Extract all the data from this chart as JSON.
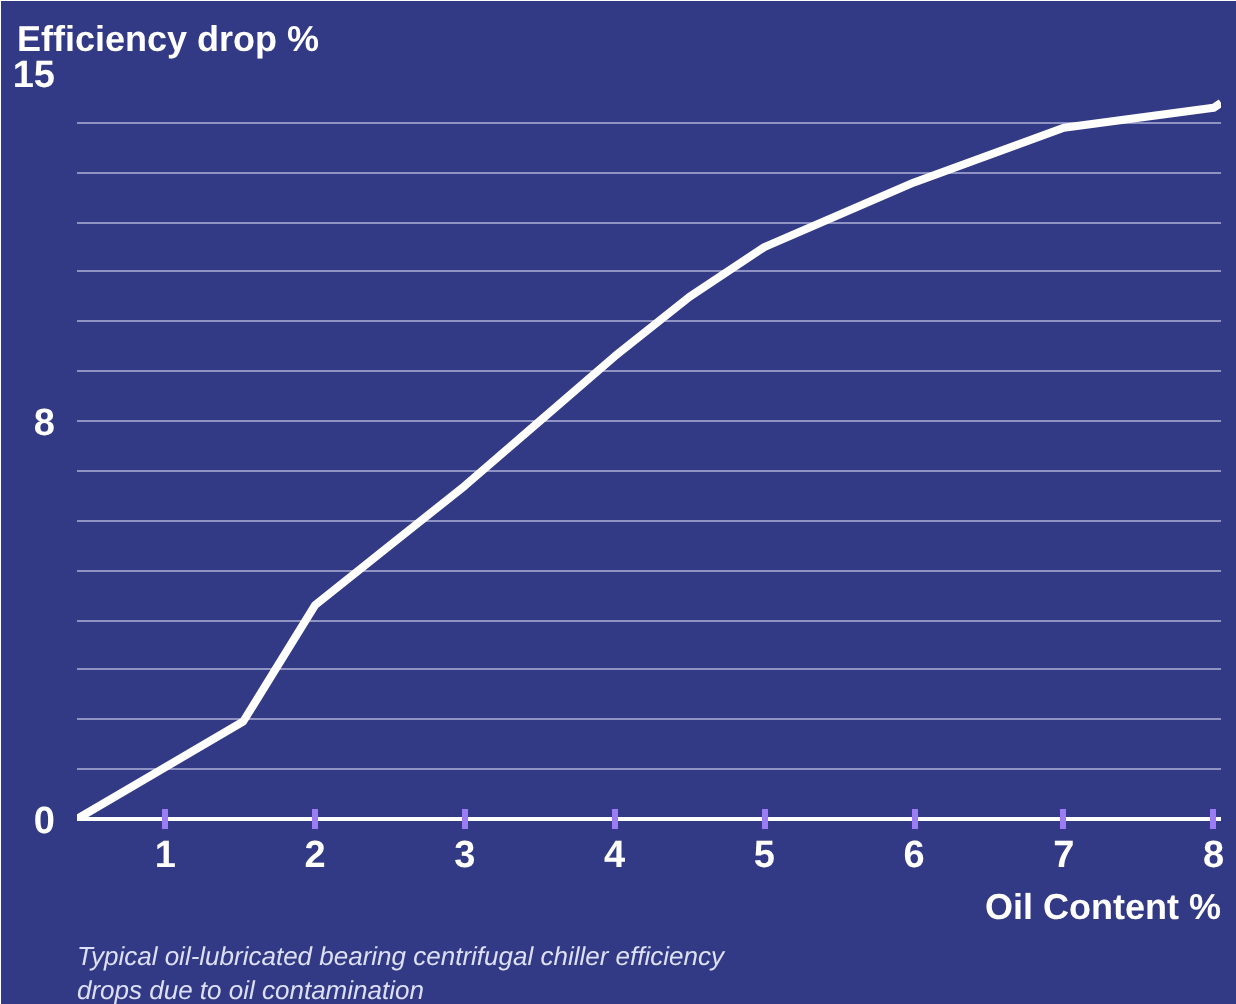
{
  "chart_data": {
    "type": "line",
    "xlabel": "Oil Content %",
    "ylabel": "Efficiency drop %",
    "annotations": [
      "Typical oil-lubricated bearing centrifugal chiller efficiency drops due to oil contamination"
    ],
    "x": [
      0.41,
      1.52,
      2,
      2.5,
      3,
      3.5,
      4,
      4.5,
      5,
      6,
      7,
      8,
      8.05
    ],
    "series": [
      {
        "color": "#ffffff",
        "values": [
          0,
          1.96,
          4.3,
          5.5,
          6.7,
          8.0,
          9.3,
          10.5,
          11.5,
          12.8,
          13.9,
          14.3,
          14.4
        ]
      }
    ],
    "xlim": [
      0.41,
      8.05
    ],
    "ylim": [
      0,
      15
    ],
    "xticks": [
      1,
      2,
      3,
      4,
      5,
      6,
      7,
      8
    ],
    "yticks": [
      0,
      {
        "value": 1,
        "label": null
      },
      {
        "value": 2,
        "label": null
      },
      {
        "value": 3,
        "label": null
      },
      {
        "value": 4,
        "label": null
      },
      {
        "value": 5,
        "label": null
      },
      {
        "value": 6,
        "label": null
      },
      {
        "value": 7,
        "label": null
      },
      8,
      {
        "value": 9,
        "label": null
      },
      {
        "value": 10,
        "label": null
      },
      {
        "value": 11,
        "label": null
      },
      {
        "value": 12,
        "label": null
      },
      {
        "value": 13,
        "label": null
      },
      {
        "value": 14,
        "label": null
      },
      15
    ],
    "grid": "y",
    "marker": "none",
    "line_style": "solid"
  }
}
